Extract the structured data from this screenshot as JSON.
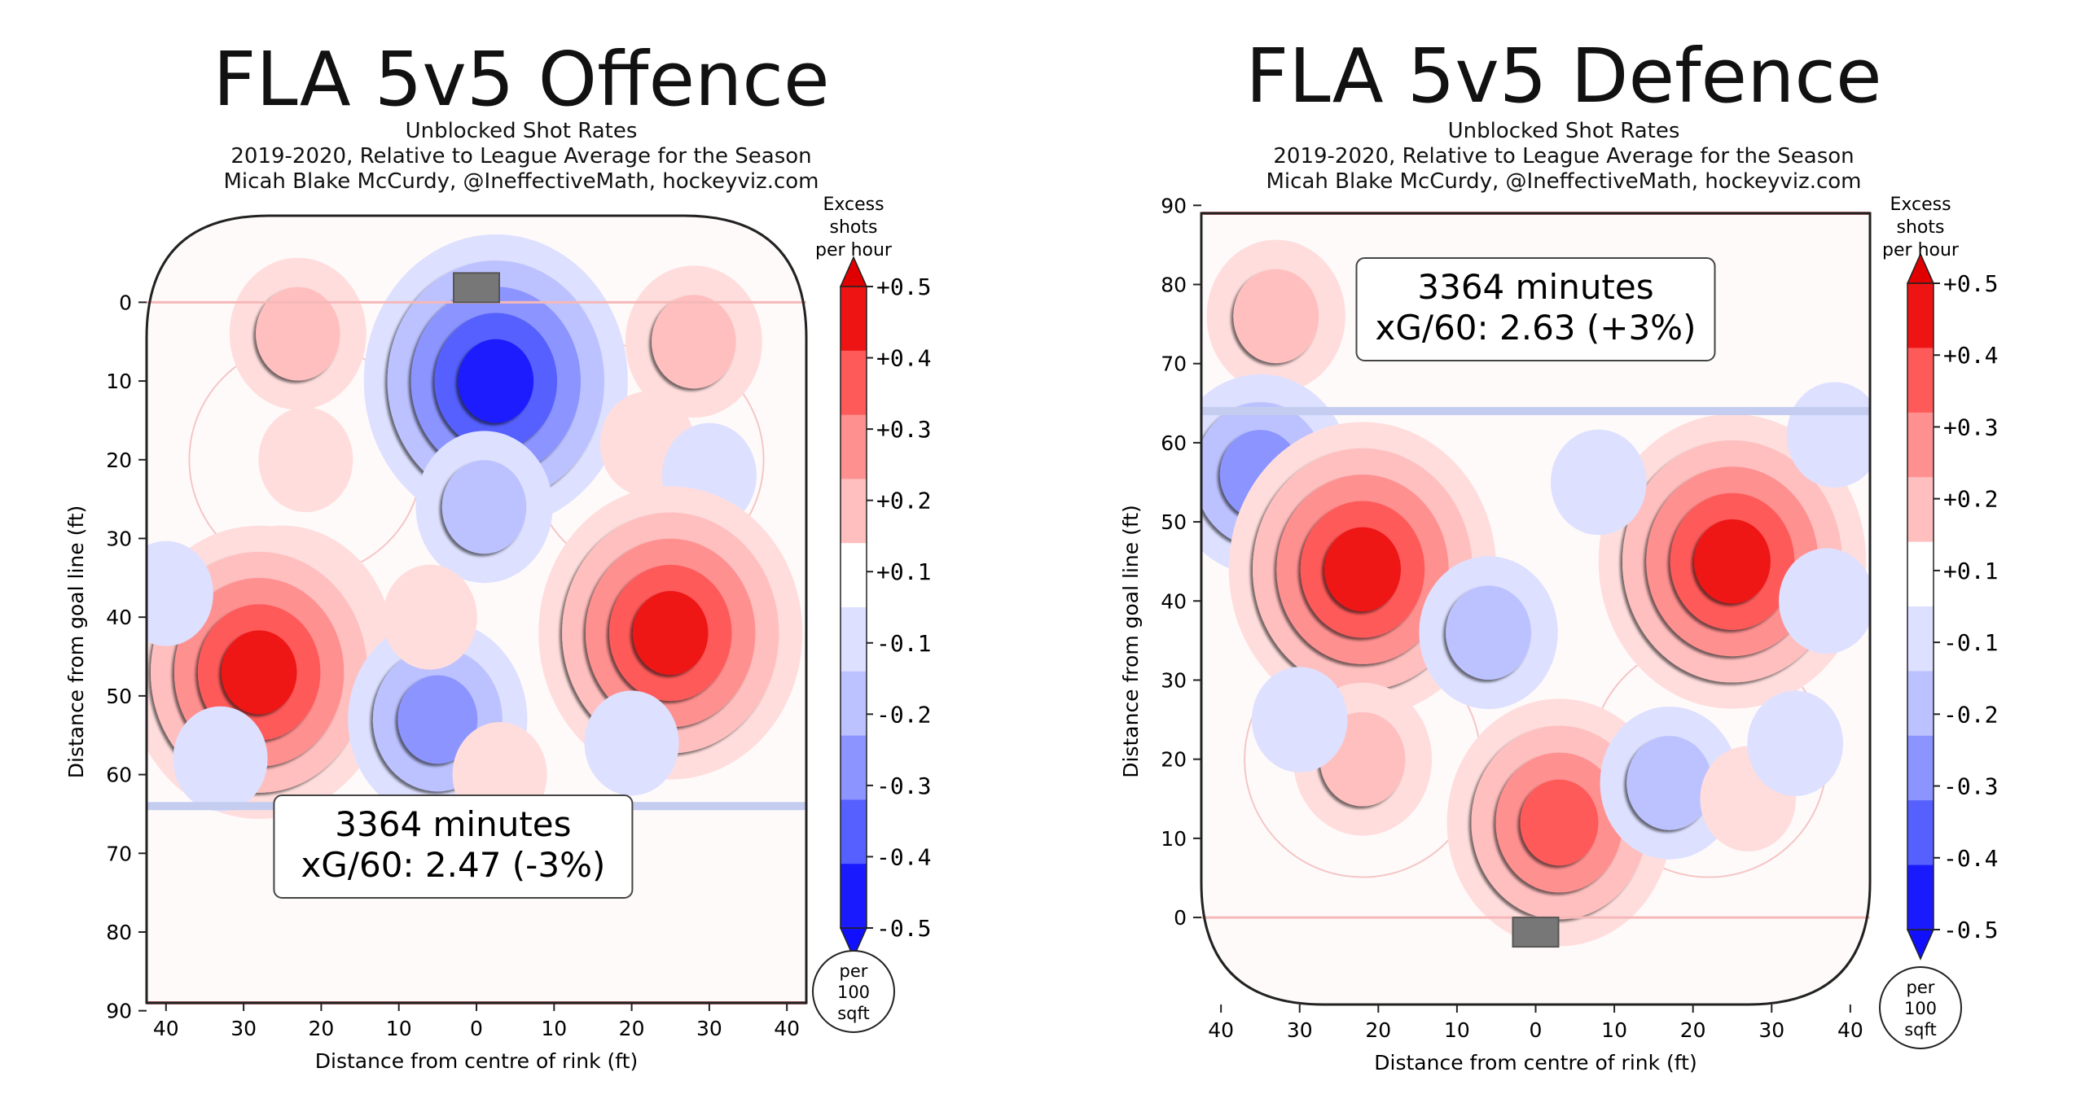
{
  "chart_data": [
    {
      "type": "heatmap",
      "title": "FLA 5v5 Offence",
      "subtitle_lines": [
        "Unblocked Shot Rates",
        "2019-2020, Relative to League Average for the Season",
        "Micah Blake McCurdy, @IneffectiveMath, hockeyviz.com"
      ],
      "xlabel": "Distance from centre of rink (ft)",
      "ylabel": "Distance from goal line (ft)",
      "xticks": [
        "40",
        "30",
        "20",
        "10",
        "0",
        "10",
        "20",
        "30",
        "40"
      ],
      "yticks": [
        "0",
        "10",
        "20",
        "30",
        "40",
        "50",
        "60",
        "70",
        "80",
        "90"
      ],
      "y_direction": "down",
      "xlim": [
        -42.5,
        42.5
      ],
      "ylim": [
        -11,
        89
      ],
      "annotation": [
        "3364 minutes",
        "xG/60: 2.47 (-3%)"
      ],
      "colorbar": {
        "title": [
          "Excess",
          "shots",
          "per hour"
        ],
        "ticks": [
          "+0.5",
          "+0.4",
          "+0.3",
          "+0.2",
          "+0.1",
          "-0.1",
          "-0.2",
          "-0.3",
          "-0.4",
          "-0.5"
        ],
        "unit_note": [
          "per",
          "100",
          "sqft"
        ]
      },
      "blobs": [
        {
          "x": -23,
          "y": 4,
          "level": 2
        },
        {
          "x": 2.5,
          "y": 10,
          "level": -5
        },
        {
          "x": 1,
          "y": 26,
          "level": -2
        },
        {
          "x": 28,
          "y": 5,
          "level": 2
        },
        {
          "x": -22,
          "y": 20,
          "level": 1
        },
        {
          "x": 22,
          "y": 18,
          "level": 1
        },
        {
          "x": 30,
          "y": 22,
          "level": -1
        },
        {
          "x": -25,
          "y": 44,
          "level": 4
        },
        {
          "x": -28,
          "y": 47,
          "level": 5
        },
        {
          "x": 25,
          "y": 42,
          "level": 5
        },
        {
          "x": -40,
          "y": 37,
          "level": -1
        },
        {
          "x": -5,
          "y": 53,
          "level": -3
        },
        {
          "x": 20,
          "y": 56,
          "level": -1
        },
        {
          "x": -6,
          "y": 40,
          "level": 1
        },
        {
          "x": -33,
          "y": 58,
          "level": -1
        },
        {
          "x": 3,
          "y": 60,
          "level": 1
        }
      ]
    },
    {
      "type": "heatmap",
      "title": "FLA 5v5 Defence",
      "subtitle_lines": [
        "Unblocked Shot Rates",
        "2019-2020, Relative to League Average for the Season",
        "Micah Blake McCurdy, @IneffectiveMath, hockeyviz.com"
      ],
      "xlabel": "Distance from centre of rink (ft)",
      "ylabel": "Distance from goal line (ft)",
      "xticks": [
        "40",
        "30",
        "20",
        "10",
        "0",
        "10",
        "20",
        "30",
        "40"
      ],
      "yticks": [
        "0",
        "10",
        "20",
        "30",
        "40",
        "50",
        "60",
        "70",
        "80",
        "90"
      ],
      "y_direction": "up",
      "xlim": [
        -42.5,
        42.5
      ],
      "ylim": [
        -11,
        89
      ],
      "annotation": [
        "3364 minutes",
        "xG/60: 2.63 (+3%)"
      ],
      "colorbar": {
        "title": [
          "Excess",
          "shots",
          "per hour"
        ],
        "ticks": [
          "+0.5",
          "+0.4",
          "+0.3",
          "+0.2",
          "+0.1",
          "-0.1",
          "-0.2",
          "-0.3",
          "-0.4",
          "-0.5"
        ],
        "unit_note": [
          "per",
          "100",
          "sqft"
        ]
      },
      "blobs": [
        {
          "x": -33,
          "y": 76,
          "level": 2
        },
        {
          "x": -35,
          "y": 56,
          "level": -3
        },
        {
          "x": -22,
          "y": 44,
          "level": 5
        },
        {
          "x": 25,
          "y": 45,
          "level": 5
        },
        {
          "x": 3,
          "y": 12,
          "level": 4
        },
        {
          "x": -22,
          "y": 20,
          "level": 2
        },
        {
          "x": -6,
          "y": 36,
          "level": -2
        },
        {
          "x": 17,
          "y": 17,
          "level": -2
        },
        {
          "x": -30,
          "y": 25,
          "level": -1
        },
        {
          "x": 8,
          "y": 55,
          "level": -1
        },
        {
          "x": 27,
          "y": 15,
          "level": 1
        },
        {
          "x": 37,
          "y": 40,
          "level": -1
        },
        {
          "x": 38,
          "y": 61,
          "level": -1
        },
        {
          "x": 33,
          "y": 22,
          "level": -1
        }
      ]
    }
  ],
  "colors": {
    "pos": [
      "#ffdddd",
      "#ffbfbf",
      "#ff9090",
      "#ff5a5a",
      "#ef1414"
    ],
    "neg": [
      "#dde0ff",
      "#bcc2ff",
      "#8c95ff",
      "#5560ff",
      "#1a1aff"
    ]
  }
}
